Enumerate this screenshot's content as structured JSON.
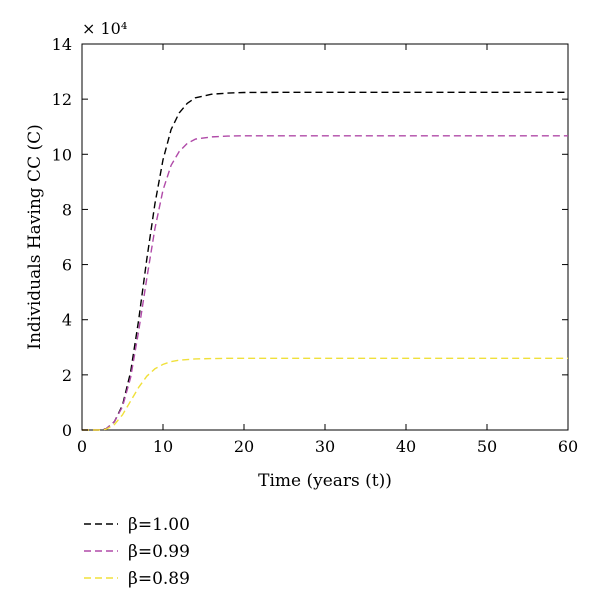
{
  "chart_data": {
    "type": "line",
    "title": "",
    "xlabel": "Time (years (t))",
    "ylabel": "Individuals Having CC (C)",
    "y_multiplier_label": "× 10⁴",
    "xlim": [
      0,
      60
    ],
    "ylim": [
      0,
      14
    ],
    "xticks": [
      0,
      10,
      20,
      30,
      40,
      50,
      60
    ],
    "yticks": [
      0,
      2,
      4,
      6,
      8,
      10,
      12,
      14
    ],
    "grid": false,
    "legend_position": "below-left",
    "series": [
      {
        "name": "β=1.00",
        "color": "#000000",
        "x": [
          0,
          2,
          3,
          4,
          5,
          6,
          7,
          8,
          9,
          10,
          11,
          12,
          13,
          14,
          16,
          18,
          20,
          25,
          30,
          40,
          50,
          60
        ],
        "y": [
          0,
          0,
          0.05,
          0.3,
          0.9,
          2.1,
          4.0,
          6.2,
          8.2,
          9.8,
          10.9,
          11.5,
          11.85,
          12.05,
          12.18,
          12.22,
          12.24,
          12.25,
          12.25,
          12.25,
          12.25,
          12.25
        ]
      },
      {
        "name": "β=0.99",
        "color": "#b04aa8",
        "x": [
          0,
          2,
          3,
          4,
          5,
          6,
          7,
          8,
          9,
          10,
          11,
          12,
          13,
          14,
          16,
          18,
          20,
          25,
          30,
          40,
          50,
          60
        ],
        "y": [
          0,
          0,
          0.05,
          0.3,
          0.85,
          1.9,
          3.6,
          5.5,
          7.3,
          8.7,
          9.6,
          10.1,
          10.4,
          10.55,
          10.63,
          10.66,
          10.67,
          10.67,
          10.67,
          10.67,
          10.67,
          10.67
        ]
      },
      {
        "name": "β=0.89",
        "color": "#f0e03a",
        "x": [
          0,
          2,
          3,
          4,
          5,
          6,
          7,
          8,
          9,
          10,
          11,
          12,
          14,
          16,
          18,
          20,
          25,
          30,
          40,
          50,
          60
        ],
        "y": [
          0,
          0,
          0.03,
          0.2,
          0.55,
          1.05,
          1.55,
          1.95,
          2.22,
          2.38,
          2.48,
          2.53,
          2.58,
          2.59,
          2.6,
          2.6,
          2.6,
          2.6,
          2.6,
          2.6,
          2.6
        ]
      }
    ]
  }
}
